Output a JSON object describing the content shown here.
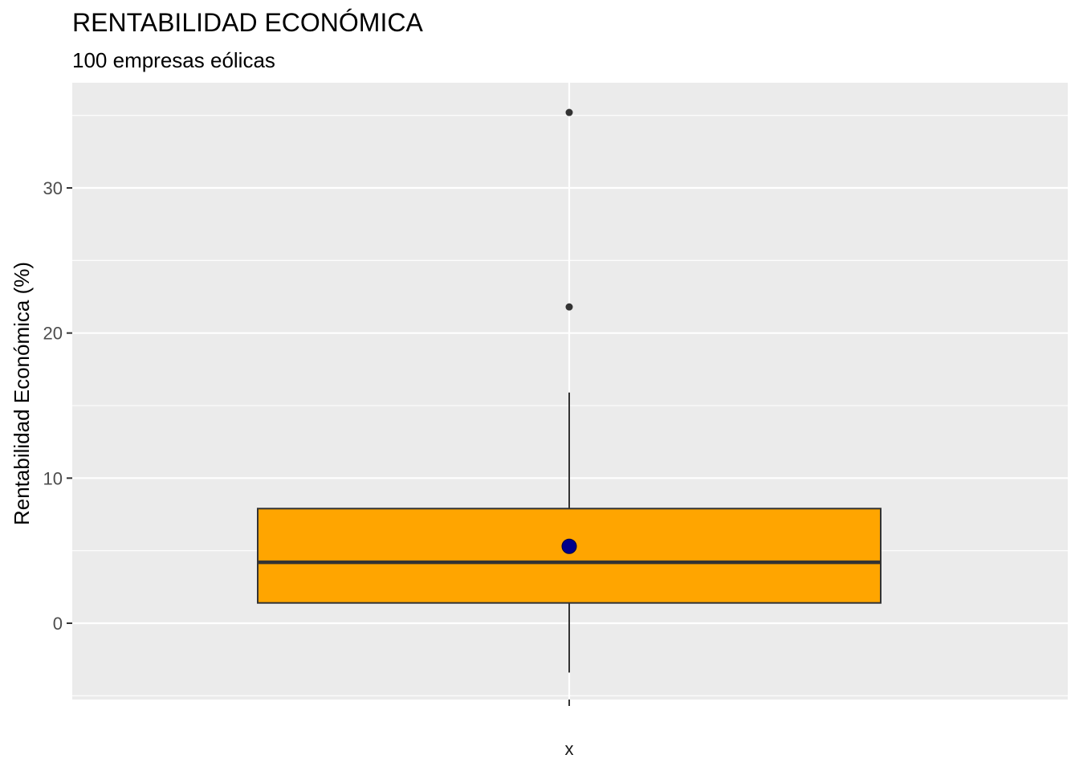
{
  "chart_data": {
    "type": "boxplot",
    "title": "RENTABILIDAD ECONÓMICA",
    "subtitle": "100 empresas eólicas",
    "xlabel": "",
    "ylabel": "Rentabilidad Económica (%)",
    "categories": [
      "x"
    ],
    "y_ticks": [
      0,
      10,
      20,
      30
    ],
    "y_tick_labels": [
      "0",
      "10",
      "20",
      "30"
    ],
    "ylim": [
      -5,
      37
    ],
    "grid": true,
    "box": {
      "category": "x",
      "whisker_low": -3.4,
      "q1": 1.4,
      "median": 4.2,
      "q3": 7.9,
      "whisker_high": 15.9,
      "outliers": [
        21.8,
        35.2
      ],
      "mean": 5.3
    },
    "colors": {
      "panel": "#EBEBEB",
      "grid": "#FFFFFF",
      "box_fill": "#FFA500",
      "box_line": "#333333",
      "mean_point": "#00008B",
      "outlier": "#333333"
    }
  }
}
